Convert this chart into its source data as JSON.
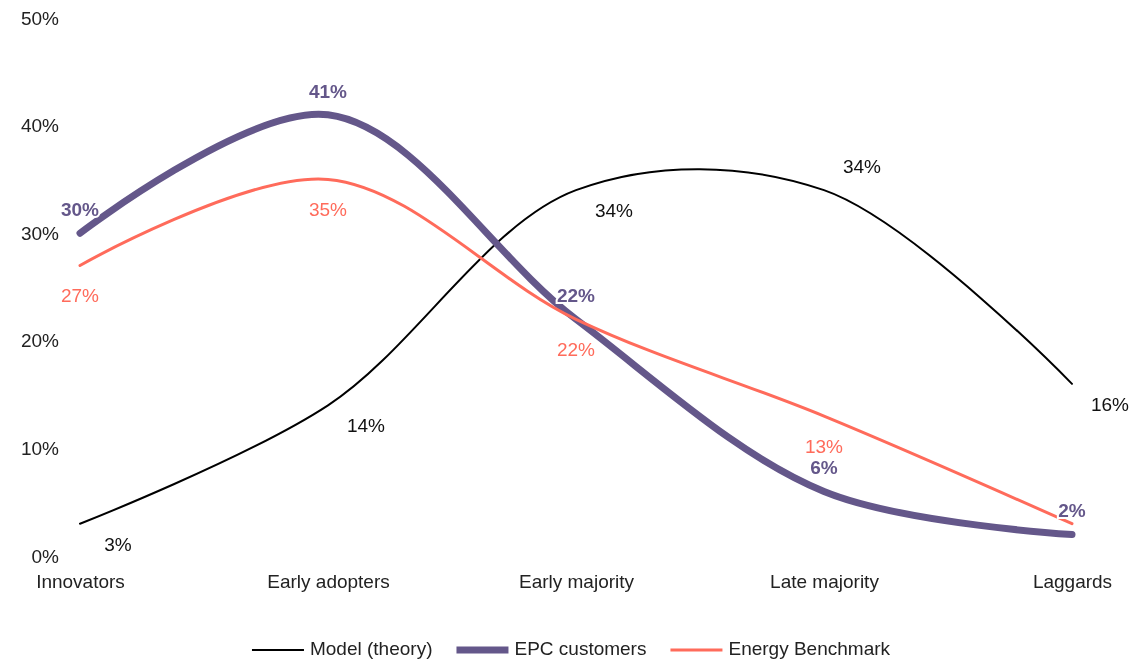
{
  "chart_data": {
    "type": "line",
    "categories": [
      "Innovators",
      "Early adopters",
      "Early majority",
      "Late majority",
      "Laggards"
    ],
    "series": [
      {
        "name": "Model (theory)",
        "color": "#000000",
        "values": [
          3,
          14,
          34,
          34,
          16
        ],
        "value_labels": [
          "3%",
          "14%",
          "34%",
          "34%",
          "16%"
        ]
      },
      {
        "name": "EPC customers",
        "color": "#64578a",
        "values": [
          30,
          41,
          22,
          6,
          2
        ],
        "value_labels": [
          "30%",
          "41%",
          "22%",
          "6%",
          "2%"
        ]
      },
      {
        "name": "Energy Benchmark",
        "color": "#ff6b5b",
        "values": [
          27,
          35,
          22,
          13,
          3
        ],
        "value_labels": [
          "27%",
          "35%",
          "22%",
          "13%",
          null
        ]
      }
    ],
    "ylim": [
      0,
      50
    ],
    "yticks": [
      {
        "value": 0,
        "label": "0%"
      },
      {
        "value": 10,
        "label": "10%"
      },
      {
        "value": 20,
        "label": "20%"
      },
      {
        "value": 30,
        "label": "30%"
      },
      {
        "value": 40,
        "label": "40%"
      },
      {
        "value": 50,
        "label": "50%"
      }
    ],
    "grid": false,
    "legend": "bottom",
    "marker": "none",
    "line_style": "solid"
  }
}
